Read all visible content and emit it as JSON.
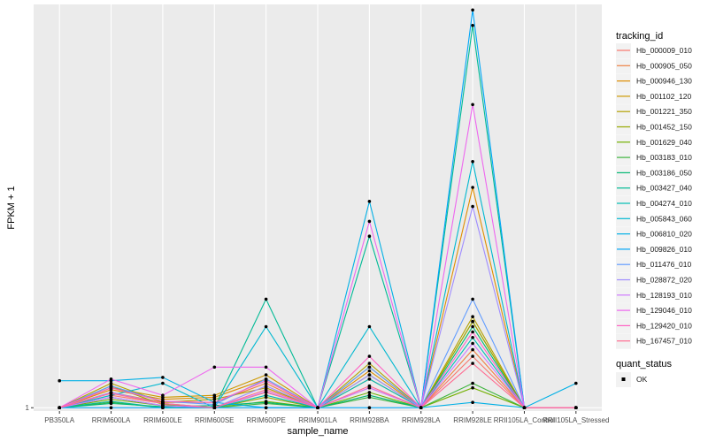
{
  "chart_data": {
    "type": "line",
    "xlabel": "sample_name",
    "ylabel": "FPKM + 1",
    "y_ticks": [
      1
    ],
    "y_scale": "log",
    "y_range": [
      0.97,
      40
    ],
    "grid": true,
    "legend_placement": "right",
    "categories": [
      "PB350LA",
      "RRIM600LA",
      "RRIM600LE",
      "RRIM600SE",
      "RRIM600PE",
      "RRIM901LA",
      "RRIM928BA",
      "RRIM928LA",
      "RRIM928LE",
      "RRII105LA_Control",
      "RRII105LA_Stressed"
    ],
    "legend_title": "tracking_id",
    "series": [
      {
        "name": "Hb_000009_010",
        "color": "#F8766D",
        "values": [
          1.0,
          1.12,
          1.04,
          1.0,
          1.15,
          1.0,
          1.2,
          1.0,
          1.6,
          1.0,
          1.0
        ]
      },
      {
        "name": "Hb_000905_050",
        "color": "#EE8043",
        "values": [
          1.0,
          1.15,
          1.05,
          1.05,
          1.25,
          1.0,
          1.3,
          1.0,
          1.7,
          1.0,
          1.0
        ]
      },
      {
        "name": "Hb_000946_130",
        "color": "#DF8D00",
        "values": [
          1.0,
          1.18,
          1.08,
          1.1,
          1.3,
          1.0,
          1.4,
          1.0,
          7.5,
          1.0,
          1.0
        ]
      },
      {
        "name": "Hb_001102_120",
        "color": "#CC9800",
        "values": [
          1.0,
          1.2,
          1.1,
          1.12,
          1.35,
          1.0,
          1.45,
          1.0,
          2.2,
          1.0,
          1.0
        ]
      },
      {
        "name": "Hb_001221_350",
        "color": "#B3A000",
        "values": [
          1.0,
          1.25,
          1.05,
          1.08,
          1.2,
          1.0,
          1.5,
          1.0,
          2.3,
          1.0,
          1.0
        ]
      },
      {
        "name": "Hb_001452_150",
        "color": "#98A900",
        "values": [
          1.0,
          1.22,
          1.03,
          1.0,
          1.1,
          1.0,
          1.35,
          1.0,
          2.2,
          1.0,
          1.0
        ]
      },
      {
        "name": "Hb_001629_040",
        "color": "#72B000",
        "values": [
          1.0,
          1.08,
          1.02,
          1.0,
          1.06,
          1.0,
          1.15,
          1.0,
          1.2,
          1.0,
          1.0
        ]
      },
      {
        "name": "Hb_003183_010",
        "color": "#3EB53E",
        "values": [
          1.0,
          1.05,
          1.0,
          1.0,
          1.04,
          1.0,
          1.1,
          1.0,
          1.25,
          1.0,
          1.0
        ]
      },
      {
        "name": "Hb_003186_050",
        "color": "#00B771",
        "values": [
          1.0,
          1.04,
          1.01,
          1.02,
          1.05,
          1.0,
          1.12,
          1.0,
          2.1,
          1.0,
          1.0
        ]
      },
      {
        "name": "Hb_003427_040",
        "color": "#00BA95",
        "values": [
          1.0,
          1.06,
          1.0,
          1.0,
          2.7,
          1.0,
          4.8,
          1.0,
          33.0,
          1.0,
          1.0
        ]
      },
      {
        "name": "Hb_004274_010",
        "color": "#00BCB4",
        "values": [
          1.0,
          1.1,
          1.02,
          1.0,
          1.12,
          1.0,
          1.3,
          1.0,
          1.9,
          1.0,
          1.0
        ]
      },
      {
        "name": "Hb_005843_060",
        "color": "#00B8D0",
        "values": [
          1.0,
          1.12,
          1.25,
          1.0,
          2.1,
          1.0,
          2.1,
          1.0,
          9.5,
          1.0,
          1.0
        ]
      },
      {
        "name": "Hb_006810_020",
        "color": "#00B0E6",
        "values": [
          1.28,
          1.28,
          1.32,
          1.05,
          1.0,
          1.0,
          6.6,
          1.0,
          1.05,
          1.0,
          1.25
        ]
      },
      {
        "name": "Hb_009826_010",
        "color": "#00A6F8",
        "values": [
          1.0,
          1.0,
          1.0,
          1.0,
          1.0,
          1.0,
          1.0,
          1.0,
          38.0,
          1.0,
          1.0
        ]
      },
      {
        "name": "Hb_011476_010",
        "color": "#619CFF",
        "values": [
          1.0,
          1.22,
          1.06,
          1.03,
          1.3,
          1.0,
          1.45,
          1.0,
          2.7,
          1.0,
          1.0
        ]
      },
      {
        "name": "Hb_028872_020",
        "color": "#9F8CFF",
        "values": [
          1.0,
          1.15,
          1.04,
          1.0,
          1.22,
          1.0,
          1.35,
          1.0,
          6.3,
          1.0,
          1.0
        ]
      },
      {
        "name": "Hb_128193_010",
        "color": "#CF78FF",
        "values": [
          1.0,
          1.1,
          1.02,
          1.0,
          1.16,
          1.0,
          1.2,
          1.0,
          1.8,
          1.0,
          1.0
        ]
      },
      {
        "name": "Hb_129046_010",
        "color": "#EE67EF",
        "values": [
          1.0,
          1.3,
          1.12,
          1.45,
          1.45,
          1.0,
          5.5,
          1.0,
          16.0,
          1.0,
          1.0
        ]
      },
      {
        "name": "Hb_129420_010",
        "color": "#FF61C3",
        "values": [
          1.0,
          1.2,
          1.06,
          1.05,
          1.28,
          1.0,
          1.6,
          1.0,
          2.0,
          1.0,
          1.0
        ]
      },
      {
        "name": "Hb_167457_010",
        "color": "#FF6C91",
        "values": [
          1.0,
          1.14,
          1.04,
          1.0,
          1.18,
          1.0,
          1.22,
          1.0,
          1.5,
          1.0,
          1.0
        ]
      }
    ],
    "legend2_title": "quant_status",
    "legend2_items": [
      "OK"
    ]
  }
}
